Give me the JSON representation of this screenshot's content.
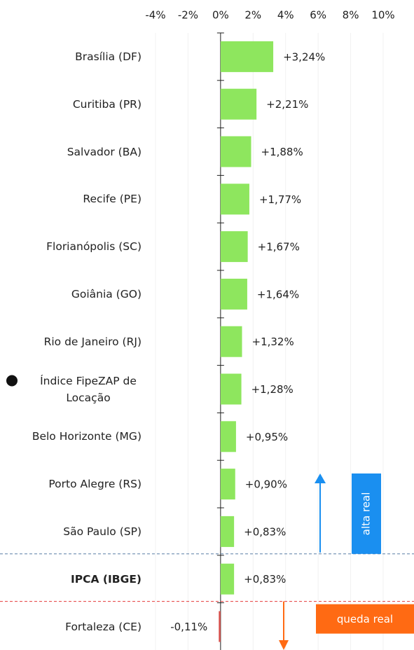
{
  "chart_data": {
    "type": "hbar",
    "categories": [
      "Brasília (DF)",
      "Curitiba (PR)",
      "Salvador (BA)",
      "Recife (PE)",
      "Florianópolis (SC)",
      "Goiânia (GO)",
      "Rio de Janeiro (RJ)",
      "Índice FipeZAP de Locação",
      "Belo Horizonte (MG)",
      "Porto Alegre (RS)",
      "São Paulo (SP)",
      "IPCA (IBGE)",
      "Fortaleza (CE)"
    ],
    "values": [
      3.24,
      2.21,
      1.88,
      1.77,
      1.67,
      1.64,
      1.32,
      1.28,
      0.95,
      0.9,
      0.83,
      0.83,
      -0.11
    ],
    "value_labels": [
      "+3,24%",
      "+2,21%",
      "+1,88%",
      "+1,77%",
      "+1,67%",
      "+1,64%",
      "+1,32%",
      "+1,28%",
      "+0,95%",
      "+0,90%",
      "+0,83%",
      "+0,83%",
      "-0,11%"
    ],
    "colors": [
      "#8ee65e",
      "#8ee65e",
      "#8ee65e",
      "#8ee65e",
      "#8ee65e",
      "#8ee65e",
      "#8ee65e",
      "#8ee65e",
      "#8ee65e",
      "#8ee65e",
      "#8ee65e",
      "#8ee65e",
      "#d9534f"
    ],
    "bold_categories": [
      11
    ],
    "dot_categories": [
      7
    ],
    "xlim": [
      -4,
      10
    ],
    "xticks": [
      {
        "value": -4,
        "label": "-4%"
      },
      {
        "value": -2,
        "label": "-2%"
      },
      {
        "value": 0,
        "label": "0%"
      },
      {
        "value": 2,
        "label": "2%"
      },
      {
        "value": 4,
        "label": "4%"
      },
      {
        "value": 6,
        "label": "6%"
      },
      {
        "value": 8,
        "label": "8%"
      },
      {
        "value": 10,
        "label": "10%"
      }
    ],
    "grid": true,
    "annotations": [
      {
        "text": "alta real",
        "color": "#1a8ff0"
      },
      {
        "text": "queda real",
        "color": "#ff6a13"
      }
    ]
  }
}
